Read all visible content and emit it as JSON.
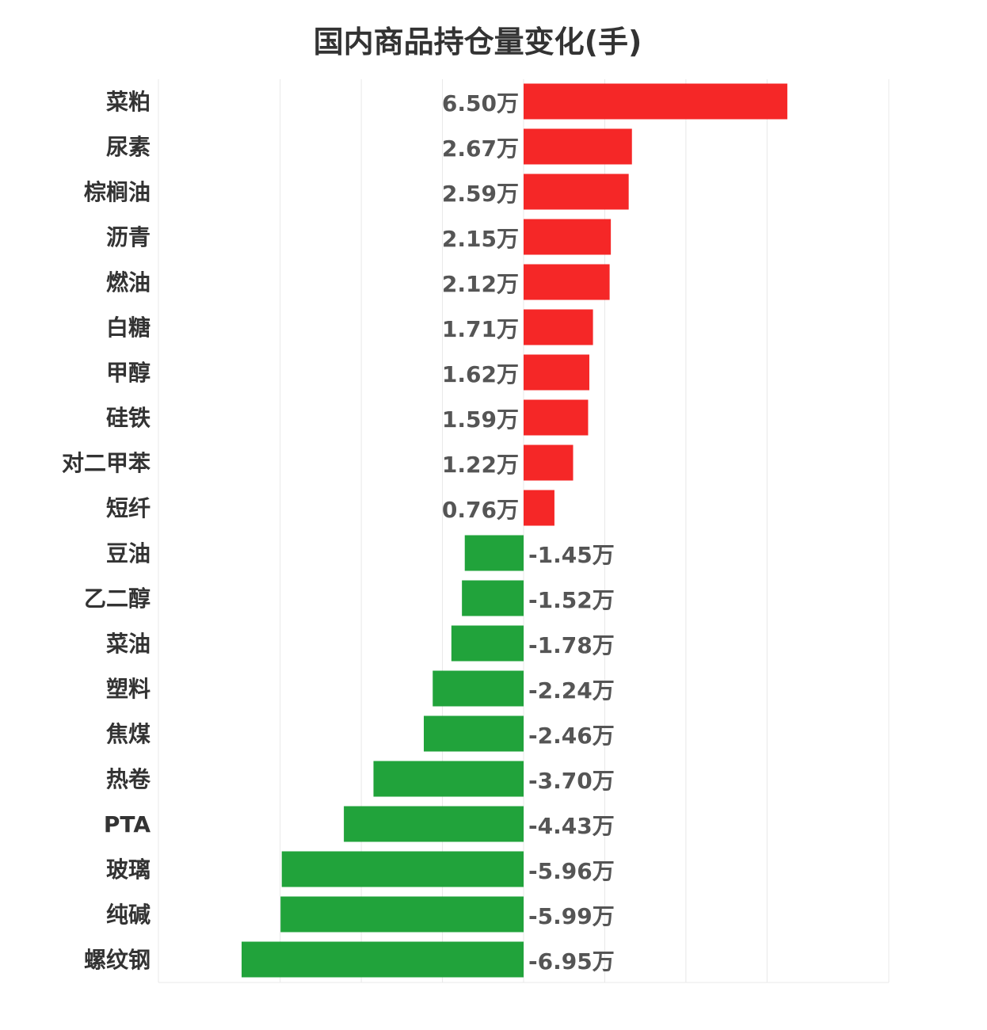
{
  "chart_data": {
    "type": "bar",
    "orientation": "horizontal",
    "title": "国内商品持仓量变化(手)",
    "unit_suffix": "万",
    "categories": [
      "菜粕",
      "尿素",
      "棕榈油",
      "沥青",
      "燃油",
      "白糖",
      "甲醇",
      "硅铁",
      "对二甲苯",
      "短纤",
      "豆油",
      "乙二醇",
      "菜油",
      "塑料",
      "焦煤",
      "热卷",
      "PTA",
      "玻璃",
      "纯碱",
      "螺纹钢"
    ],
    "values": [
      6.5,
      2.67,
      2.59,
      2.15,
      2.12,
      1.71,
      1.62,
      1.59,
      1.22,
      0.76,
      -1.45,
      -1.52,
      -1.78,
      -2.24,
      -2.46,
      -3.7,
      -4.43,
      -5.96,
      -5.99,
      -6.95
    ],
    "value_labels": [
      "6.50万",
      "2.67万",
      "2.59万",
      "2.15万",
      "2.12万",
      "1.71万",
      "1.62万",
      "1.59万",
      "1.22万",
      "0.76万",
      "-1.45万",
      "-1.52万",
      "-1.78万",
      "-2.24万",
      "-2.46万",
      "-3.70万",
      "-4.43万",
      "-5.96万",
      "-5.99万",
      "-6.95万"
    ],
    "xlim": [
      -9,
      9
    ],
    "grid": true,
    "colors": {
      "positive": "#f52727",
      "negative": "#21a33b",
      "grid": "#e8e8e8"
    }
  }
}
